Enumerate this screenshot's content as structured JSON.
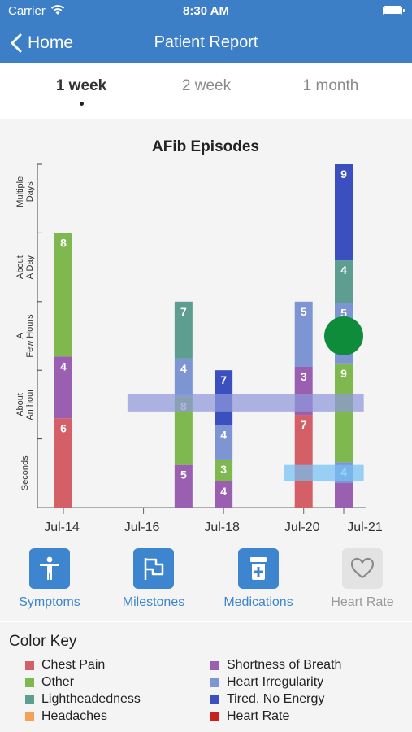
{
  "status": {
    "carrier": "Carrier",
    "time": "8:30 AM"
  },
  "nav": {
    "back_label": "Home",
    "title": "Patient Report"
  },
  "range_tabs": [
    {
      "label": "1 week",
      "active": true
    },
    {
      "label": "2 week",
      "active": false
    },
    {
      "label": "1 month",
      "active": false
    }
  ],
  "chart_data": {
    "type": "bar",
    "title": "AFib Episodes",
    "y_categories": [
      "Seconds",
      "About An hour",
      "A Few Hours",
      "About A Day",
      "Multiple Days"
    ],
    "x_ticks": [
      "Jul-14",
      "Jul-16",
      "Jul-18",
      "Jul-20",
      "Jul-21"
    ],
    "x_range": [
      "Jul-14",
      "Jul-21"
    ],
    "y_range": [
      0,
      5
    ],
    "colors": {
      "Chest Pain": "#d45f66",
      "Other": "#7fb84e",
      "Lightheadedness": "#5e9e91",
      "Headaches": "#f2a157",
      "Shortness of Breath": "#9a5fb0",
      "Heart Irregularity": "#7d95d2",
      "Tired, No Energy": "#3b4fbf",
      "Heart Rate": "#c9211e"
    },
    "stacks": [
      {
        "day": 0,
        "segments": [
          {
            "symptom": "Chest Pain",
            "from": 0,
            "to": 1.3,
            "label": "6"
          },
          {
            "symptom": "Shortness of Breath",
            "from": 1.3,
            "to": 2.2,
            "label": "4"
          },
          {
            "symptom": "Other",
            "from": 2.2,
            "to": 4.0,
            "label": "8"
          }
        ]
      },
      {
        "day": 3,
        "segments": [
          {
            "symptom": "Shortness of Breath",
            "from": 0,
            "to": 0.62,
            "label": "5"
          },
          {
            "symptom": "Other",
            "from": 0.62,
            "to": 1.62,
            "label": "8"
          },
          {
            "symptom": "Heart Irregularity",
            "from": 1.62,
            "to": 2.17,
            "label": "4"
          },
          {
            "symptom": "Lightheadedness",
            "from": 2.17,
            "to": 3.0,
            "label": "7"
          }
        ]
      },
      {
        "day": 4,
        "segments": [
          {
            "symptom": "Shortness of Breath",
            "from": 0,
            "to": 0.38,
            "label": "4"
          },
          {
            "symptom": "Other",
            "from": 0.38,
            "to": 0.7,
            "label": "3"
          },
          {
            "symptom": "Heart Irregularity",
            "from": 0.7,
            "to": 1.2,
            "label": "4"
          },
          {
            "symptom": "Tired, No Energy",
            "from": 1.2,
            "to": 2.0,
            "label": "7"
          }
        ]
      },
      {
        "day": 6,
        "segments": [
          {
            "symptom": "Chest Pain",
            "from": 0,
            "to": 1.35,
            "label": "7"
          },
          {
            "symptom": "Shortness of Breath",
            "from": 1.35,
            "to": 2.05,
            "label": "3"
          },
          {
            "symptom": "Heart Irregularity",
            "from": 2.05,
            "to": 3.0,
            "label": "5"
          }
        ]
      },
      {
        "day": 7,
        "segments": [
          {
            "symptom": "Shortness of Breath",
            "from": 0,
            "to": 0.36,
            "label": ""
          },
          {
            "symptom": "Heart Irregularity",
            "from": 0.36,
            "to": 0.66,
            "label": "4"
          },
          {
            "symptom": "Other",
            "from": 0.66,
            "to": 2.1,
            "label": "9"
          },
          {
            "symptom": "Heart Irregularity",
            "from": 2.1,
            "to": 2.98,
            "label": "5"
          },
          {
            "symptom": "Lightheadedness",
            "from": 2.98,
            "to": 3.6,
            "label": "4"
          },
          {
            "symptom": "Tired, No Energy",
            "from": 3.6,
            "to": 5.0,
            "label": "9"
          }
        ]
      }
    ],
    "range_bands": [
      {
        "from_day": 1.6,
        "to_day": 7.5,
        "y_from": 1.4,
        "y_to": 1.65,
        "color": "#8f99db"
      },
      {
        "from_day": 5.5,
        "to_day": 7.5,
        "y_from": 0.38,
        "y_to": 0.62,
        "color": "#74c1f4"
      }
    ],
    "marker": {
      "day": 7,
      "y": 2.5,
      "color": "#0e8c3a"
    }
  },
  "actions": [
    {
      "label": "Symptoms",
      "icon": "person-icon",
      "enabled": true
    },
    {
      "label": "Milestones",
      "icon": "flag-icon",
      "enabled": true
    },
    {
      "label": "Medications",
      "icon": "medicine-bottle-icon",
      "enabled": true
    },
    {
      "label": "Heart Rate",
      "icon": "heart-icon",
      "enabled": false
    }
  ],
  "color_key": {
    "title": "Color Key",
    "items": [
      {
        "label": "Chest Pain",
        "color": "#d45f66"
      },
      {
        "label": "Shortness of Breath",
        "color": "#9a5fb0"
      },
      {
        "label": "Other",
        "color": "#7fb84e"
      },
      {
        "label": "Heart Irregularity",
        "color": "#7d95d2"
      },
      {
        "label": "Lightheadedness",
        "color": "#5e9e91"
      },
      {
        "label": "Tired, No Energy",
        "color": "#3b4fbf"
      },
      {
        "label": "Headaches",
        "color": "#f2a157"
      },
      {
        "label": "Heart Rate",
        "color": "#c9211e"
      }
    ]
  }
}
